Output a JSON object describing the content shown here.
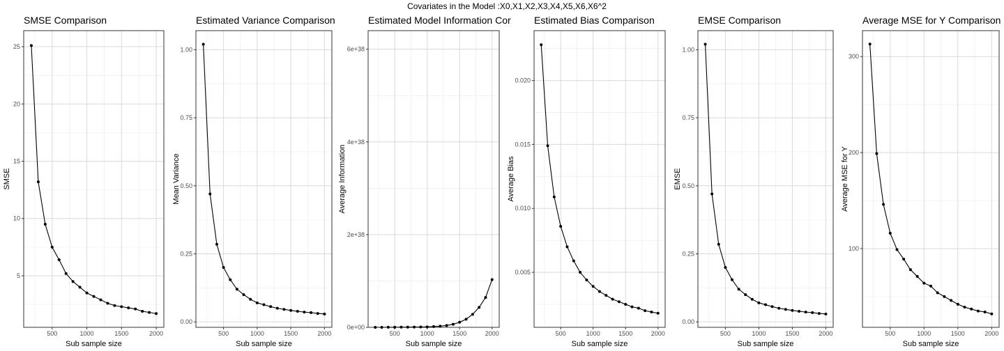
{
  "suptitle": "Covariates in the Model :X0,X1,X2,X3,X4,X5,X6,X6^2",
  "chart_data": [
    {
      "type": "line",
      "title": "SMSE Comparison",
      "xlabel": "Sub sample size",
      "ylabel": "SMSE",
      "x": [
        200,
        300,
        400,
        500,
        600,
        700,
        800,
        900,
        1000,
        1100,
        1200,
        1300,
        1400,
        1500,
        1600,
        1700,
        1800,
        1900,
        2000
      ],
      "y": [
        25.1,
        13.2,
        9.5,
        7.5,
        6.4,
        5.2,
        4.5,
        4.0,
        3.5,
        3.2,
        2.9,
        2.6,
        2.4,
        2.3,
        2.2,
        2.1,
        1.9,
        1.8,
        1.7
      ],
      "xlim": [
        90,
        2110
      ],
      "ylim": [
        0.5,
        26.4
      ],
      "xticks": [
        500,
        1000,
        1500,
        2000
      ],
      "xtick_labels": [
        "500",
        "1000",
        "1500",
        "2000"
      ],
      "yticks": [
        5,
        10,
        15,
        20,
        25
      ],
      "ytick_labels": [
        "5",
        "10",
        "15",
        "20",
        "25"
      ],
      "grid": true
    },
    {
      "type": "line",
      "title": "Estimated Variance Comparison",
      "xlabel": "Sub sample size",
      "ylabel": "Mean Variance",
      "x": [
        200,
        300,
        400,
        500,
        600,
        700,
        800,
        900,
        1000,
        1100,
        1200,
        1300,
        1400,
        1500,
        1600,
        1700,
        1800,
        1900,
        2000
      ],
      "y": [
        1.02,
        0.47,
        0.285,
        0.2,
        0.155,
        0.12,
        0.1,
        0.083,
        0.07,
        0.063,
        0.056,
        0.05,
        0.046,
        0.042,
        0.039,
        0.036,
        0.034,
        0.031,
        0.029
      ],
      "xlim": [
        90,
        2110
      ],
      "ylim": [
        -0.02,
        1.07
      ],
      "xticks": [
        500,
        1000,
        1500,
        2000
      ],
      "xtick_labels": [
        "500",
        "1000",
        "1500",
        "2000"
      ],
      "yticks": [
        0,
        0.25,
        0.5,
        0.75,
        1.0
      ],
      "ytick_labels": [
        "0.00",
        "0.25",
        "0.50",
        "0.75",
        "1.00"
      ],
      "grid": true
    },
    {
      "type": "line",
      "title": "Estimated Model Information Cor",
      "xlabel": "Sub sample size",
      "ylabel": "Average Information",
      "x": [
        200,
        300,
        400,
        500,
        600,
        700,
        800,
        900,
        1000,
        1100,
        1200,
        1300,
        1400,
        1500,
        1600,
        1700,
        1800,
        1900,
        2000
      ],
      "y": [
        0.0,
        0.0,
        0.01,
        0.02,
        0.03,
        0.04,
        0.05,
        0.07,
        0.1,
        0.16,
        0.25,
        0.4,
        0.65,
        1.1,
        1.75,
        2.8,
        4.3,
        6.45,
        10.3
      ],
      "y_units": "1e37",
      "xlim": [
        90,
        2110
      ],
      "ylim": [
        -0.3,
        6.4e+38
      ],
      "xticks": [
        500,
        1000,
        1500,
        2000
      ],
      "xtick_labels": [
        "500",
        "1000",
        "1500",
        "2000"
      ],
      "yticks": [
        0,
        2e+38,
        4e+38,
        6e+38
      ],
      "ytick_labels": [
        "0e+00",
        "2e+38",
        "4e+38",
        "6e+38"
      ],
      "grid": true
    },
    {
      "type": "line",
      "title": "Estimated Bias Comparison",
      "xlabel": "Sub sample size",
      "ylabel": "Average Bias",
      "x": [
        200,
        300,
        400,
        500,
        600,
        700,
        800,
        900,
        1000,
        1100,
        1200,
        1300,
        1400,
        1500,
        1600,
        1700,
        1800,
        1900,
        2000
      ],
      "y": [
        0.0228,
        0.0149,
        0.0109,
        0.0086,
        0.007,
        0.0059,
        0.005,
        0.0044,
        0.0039,
        0.0035,
        0.0032,
        0.0029,
        0.0027,
        0.0025,
        0.0023,
        0.0022,
        0.002,
        0.0019,
        0.0018
      ],
      "xlim": [
        90,
        2110
      ],
      "ylim": [
        0.0007,
        0.0239
      ],
      "xticks": [
        500,
        1000,
        1500,
        2000
      ],
      "xtick_labels": [
        "500",
        "1000",
        "1500",
        "2000"
      ],
      "yticks": [
        0.005,
        0.01,
        0.015,
        0.02
      ],
      "ytick_labels": [
        "0.005",
        "0.010",
        "0.015",
        "0.020"
      ],
      "grid": true
    },
    {
      "type": "line",
      "title": "EMSE Comparison",
      "xlabel": "Sub sample size",
      "ylabel": "EMSE",
      "x": [
        200,
        300,
        400,
        500,
        600,
        700,
        800,
        900,
        1000,
        1100,
        1200,
        1300,
        1400,
        1500,
        1600,
        1700,
        1800,
        1900,
        2000
      ],
      "y": [
        1.02,
        0.47,
        0.285,
        0.2,
        0.155,
        0.12,
        0.1,
        0.083,
        0.07,
        0.063,
        0.056,
        0.05,
        0.046,
        0.042,
        0.039,
        0.036,
        0.034,
        0.031,
        0.029
      ],
      "xlim": [
        90,
        2110
      ],
      "ylim": [
        -0.02,
        1.07
      ],
      "xticks": [
        500,
        1000,
        1500,
        2000
      ],
      "xtick_labels": [
        "500",
        "1000",
        "1500",
        "2000"
      ],
      "yticks": [
        0,
        0.25,
        0.5,
        0.75,
        1.0
      ],
      "ytick_labels": [
        "0.00",
        "0.25",
        "0.50",
        "0.75",
        "1.00"
      ],
      "grid": true
    },
    {
      "type": "line",
      "title": "Average MSE for Y Comparison",
      "xlabel": "Sub sample size",
      "ylabel": "Average MSE for Y",
      "x": [
        200,
        300,
        400,
        500,
        600,
        700,
        800,
        900,
        1000,
        1100,
        1200,
        1300,
        1400,
        1500,
        1600,
        1700,
        1800,
        1900,
        2000
      ],
      "y": [
        313,
        199,
        146,
        116,
        99,
        89,
        78,
        71,
        64,
        61,
        54,
        50,
        46,
        42,
        39,
        37,
        35,
        34,
        32
      ],
      "xlim": [
        90,
        2110
      ],
      "ylim": [
        18,
        327
      ],
      "xticks": [
        500,
        1000,
        1500,
        2000
      ],
      "xtick_labels": [
        "500",
        "1000",
        "1500",
        "2000"
      ],
      "yticks": [
        100,
        200,
        300
      ],
      "ytick_labels": [
        "100",
        "200",
        "300"
      ],
      "grid": true
    }
  ]
}
